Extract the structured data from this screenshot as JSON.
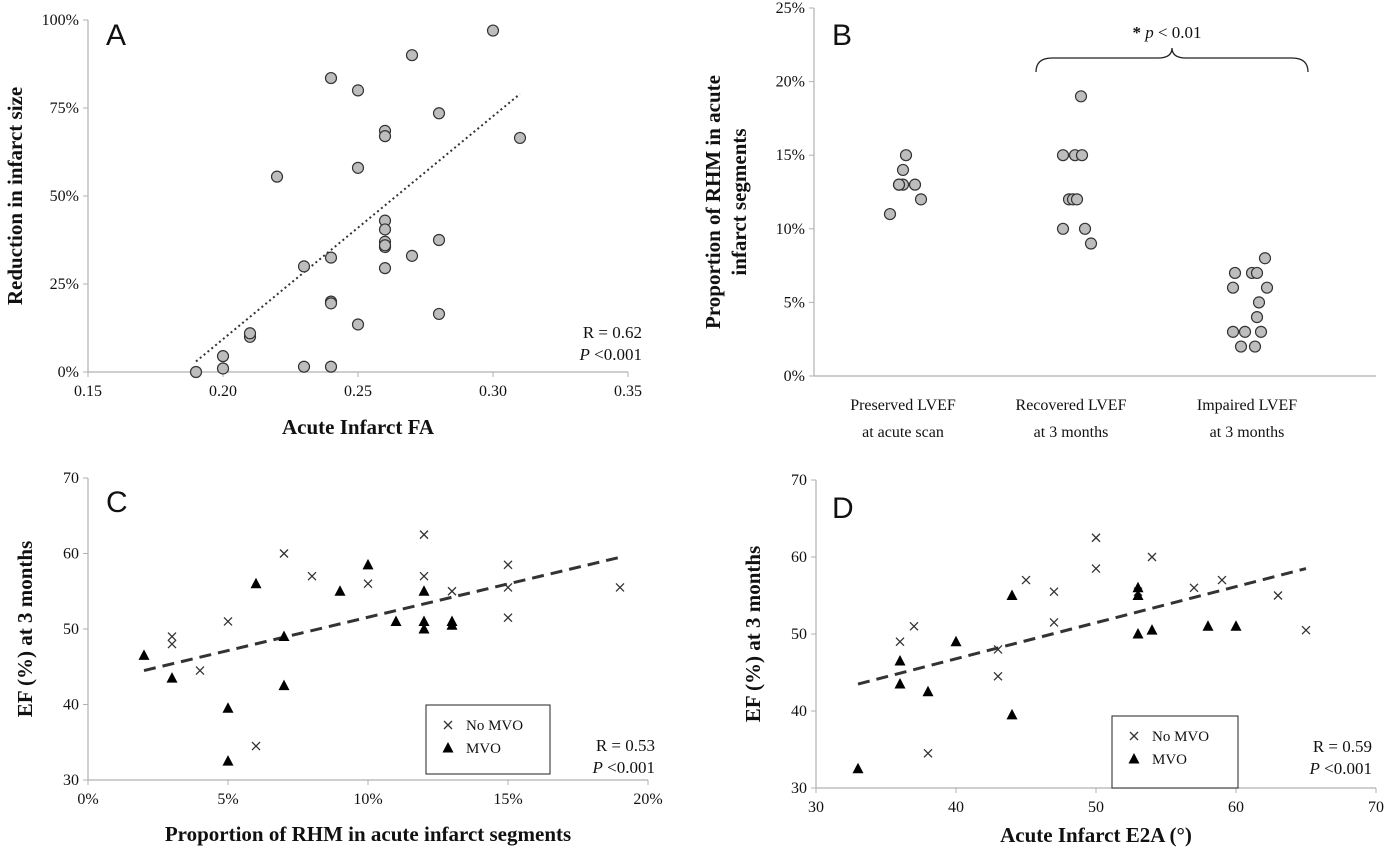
{
  "chart_data": [
    {
      "panel": "A",
      "type": "scatter",
      "xlabel": "Acute Infarct FA",
      "ylabel": "Reduction in infarct size",
      "xlim": [
        0.15,
        0.35
      ],
      "ylim": [
        0,
        100
      ],
      "x_ticks": [
        "0.15",
        "0.20",
        "0.25",
        "0.30",
        "0.35"
      ],
      "y_ticks": [
        "0%",
        "25%",
        "50%",
        "75%",
        "100%"
      ],
      "stats": [
        "R = 0.62",
        "P <0.001"
      ],
      "trendline": {
        "style": "dotted",
        "x": [
          0.19,
          0.31
        ],
        "y": [
          3,
          79
        ]
      },
      "points": {
        "x": [
          0.19,
          0.2,
          0.2,
          0.21,
          0.21,
          0.22,
          0.23,
          0.23,
          0.24,
          0.24,
          0.24,
          0.24,
          0.24,
          0.25,
          0.25,
          0.25,
          0.26,
          0.26,
          0.26,
          0.26,
          0.26,
          0.26,
          0.26,
          0.26,
          0.27,
          0.27,
          0.28,
          0.28,
          0.28,
          0.3,
          0.31
        ],
        "y": [
          0,
          1,
          4.5,
          10,
          11,
          55.5,
          30,
          1.5,
          83.5,
          32.5,
          20,
          1.5,
          19.5,
          80,
          58,
          13.5,
          68.5,
          67,
          43,
          40.5,
          37,
          35.5,
          29.5,
          36,
          90,
          33,
          73.5,
          37.5,
          16.5,
          97,
          66.5
        ]
      }
    },
    {
      "panel": "B",
      "type": "scatter",
      "ylabel": "Proportion of RHM in acute infarct segments",
      "categories": [
        "Preserved LVEF at acute scan",
        "Recovered LVEF at 3 months",
        "Impaired LVEF at 3 months"
      ],
      "category_lines": [
        [
          "Preserved LVEF",
          "at acute scan"
        ],
        [
          "Recovered LVEF",
          "at 3 months"
        ],
        [
          "Impaired LVEF",
          "at 3 months"
        ]
      ],
      "ylim": [
        0,
        25
      ],
      "y_ticks": [
        "0%",
        "5%",
        "10%",
        "15%",
        "20%",
        "25%"
      ],
      "annotation": {
        "star": "*",
        "p": "p",
        "rest": " < 0.01",
        "between": [
          "Recovered LVEF at 3 months",
          "Impaired LVEF at 3 months"
        ]
      },
      "points": [
        {
          "category": "Preserved LVEF at acute scan",
          "values": [
            11,
            13,
            13,
            13,
            14,
            15,
            13,
            12
          ]
        },
        {
          "category": "Recovered LVEF at 3 months",
          "values": [
            10,
            12,
            12,
            12,
            15,
            15,
            15,
            10,
            9,
            19
          ]
        },
        {
          "category": "Impaired LVEF at 3 months",
          "values": [
            3,
            6,
            7,
            7,
            7,
            2,
            2,
            3,
            3,
            4,
            5,
            8,
            6
          ]
        }
      ]
    },
    {
      "panel": "C",
      "type": "scatter",
      "xlabel": "Proportion of RHM in acute infarct segments",
      "ylabel": "EF (%) at 3 months",
      "xlim": [
        0,
        20
      ],
      "ylim": [
        30,
        70
      ],
      "x_ticks": [
        "0%",
        "5%",
        "10%",
        "15%",
        "20%"
      ],
      "y_ticks": [
        "30",
        "40",
        "50",
        "60",
        "70"
      ],
      "stats": [
        "R = 0.53",
        "P <0.001"
      ],
      "legend": [
        "No MVO",
        "MVO"
      ],
      "trendline": {
        "style": "dashed",
        "x": [
          2,
          19
        ],
        "y": [
          44.5,
          59.5
        ]
      },
      "series": [
        {
          "name": "No MVO",
          "marker": "x",
          "x": [
            3,
            3,
            4,
            5,
            6,
            7,
            8,
            10,
            12,
            12,
            13,
            15,
            15,
            15,
            19
          ],
          "y": [
            49,
            48,
            44.5,
            51,
            34.5,
            60,
            57,
            56,
            62.5,
            57,
            55,
            58.5,
            55.5,
            51.5,
            55.5
          ]
        },
        {
          "name": "MVO",
          "marker": "triangle",
          "x": [
            2,
            3,
            5,
            5,
            6,
            7,
            7,
            9,
            10,
            11,
            12,
            12,
            12,
            13,
            13
          ],
          "y": [
            46.5,
            43.5,
            39.5,
            32.5,
            56,
            49,
            42.5,
            55,
            58.5,
            51,
            55,
            51,
            50,
            50.5,
            51
          ]
        }
      ]
    },
    {
      "panel": "D",
      "type": "scatter",
      "xlabel": "Acute Infarct E2A (°)",
      "ylabel": "EF (%) at 3 months",
      "xlim": [
        30,
        70
      ],
      "ylim": [
        30,
        70
      ],
      "x_ticks": [
        "30",
        "40",
        "50",
        "60",
        "70"
      ],
      "y_ticks": [
        "30",
        "40",
        "50",
        "60",
        "70"
      ],
      "stats": [
        "R = 0.59",
        "P <0.001"
      ],
      "legend": [
        "No MVO",
        "MVO"
      ],
      "trendline": {
        "style": "dashed",
        "x": [
          33,
          65
        ],
        "y": [
          43.5,
          58.5
        ]
      },
      "series": [
        {
          "name": "No MVO",
          "marker": "x",
          "x": [
            36,
            37,
            38,
            43,
            43,
            45,
            47,
            47,
            50,
            50,
            53,
            54,
            57,
            59,
            63,
            65
          ],
          "y": [
            49,
            51,
            34.5,
            48,
            44.5,
            57,
            55.5,
            51.5,
            62.5,
            58.5,
            55.5,
            60,
            56,
            57,
            55,
            50.5
          ]
        },
        {
          "name": "MVO",
          "marker": "triangle",
          "x": [
            33,
            36,
            36,
            38,
            40,
            44,
            44,
            53,
            53,
            53,
            54,
            58,
            60
          ],
          "y": [
            32.5,
            46.5,
            43.5,
            42.5,
            49,
            55,
            39.5,
            56,
            55,
            50,
            50.5,
            51,
            51
          ]
        }
      ]
    }
  ]
}
